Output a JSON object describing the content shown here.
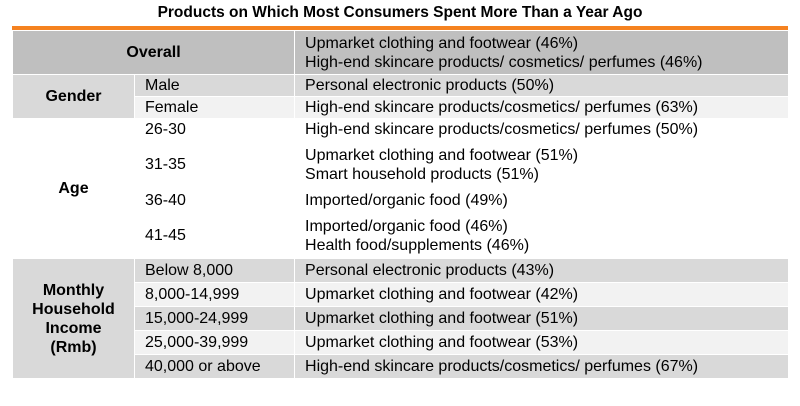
{
  "title": "Products on Which Most Consumers Spent More Than a Year Ago",
  "colors": {
    "accent": "#f58220",
    "header_bg": "#bfbfbf",
    "group_bg": "#d9d9d9",
    "row_alt": "#f2f2f2"
  },
  "overall": {
    "label": "Overall",
    "lines": [
      "Upmarket clothing and footwear (46%)",
      "High-end skincare products/ cosmetics/ perfumes (46%)"
    ]
  },
  "gender": {
    "label": "Gender",
    "rows": [
      {
        "segment": "Male",
        "products": [
          "Personal electronic products (50%)"
        ]
      },
      {
        "segment": "Female",
        "products": [
          "High-end skincare products/cosmetics/ perfumes (63%)"
        ]
      }
    ]
  },
  "age": {
    "label": "Age",
    "rows": [
      {
        "segment": "26-30",
        "products": [
          "High-end skincare products/cosmetics/ perfumes (50%)"
        ]
      },
      {
        "segment": "31-35",
        "products": [
          "Upmarket clothing and footwear (51%)",
          "Smart household products (51%)"
        ]
      },
      {
        "segment": "36-40",
        "products": [
          "Imported/organic food (49%)"
        ]
      },
      {
        "segment": "41-45",
        "products": [
          "Imported/organic food (46%)",
          "Health food/supplements (46%)"
        ]
      }
    ]
  },
  "income": {
    "label_lines": [
      "Monthly",
      "Household",
      "Income",
      "(Rmb)"
    ],
    "rows": [
      {
        "segment": "Below 8,000",
        "products": [
          "Personal electronic products (43%)"
        ]
      },
      {
        "segment": "8,000-14,999",
        "products": [
          "Upmarket clothing and footwear (42%)"
        ]
      },
      {
        "segment": "15,000-24,999",
        "products": [
          "Upmarket clothing and footwear (51%)"
        ]
      },
      {
        "segment": "25,000-39,999",
        "products": [
          "Upmarket clothing and footwear (53%)"
        ]
      },
      {
        "segment": "40,000 or above",
        "products": [
          "High-end skincare products/cosmetics/ perfumes (67%)"
        ]
      }
    ]
  }
}
